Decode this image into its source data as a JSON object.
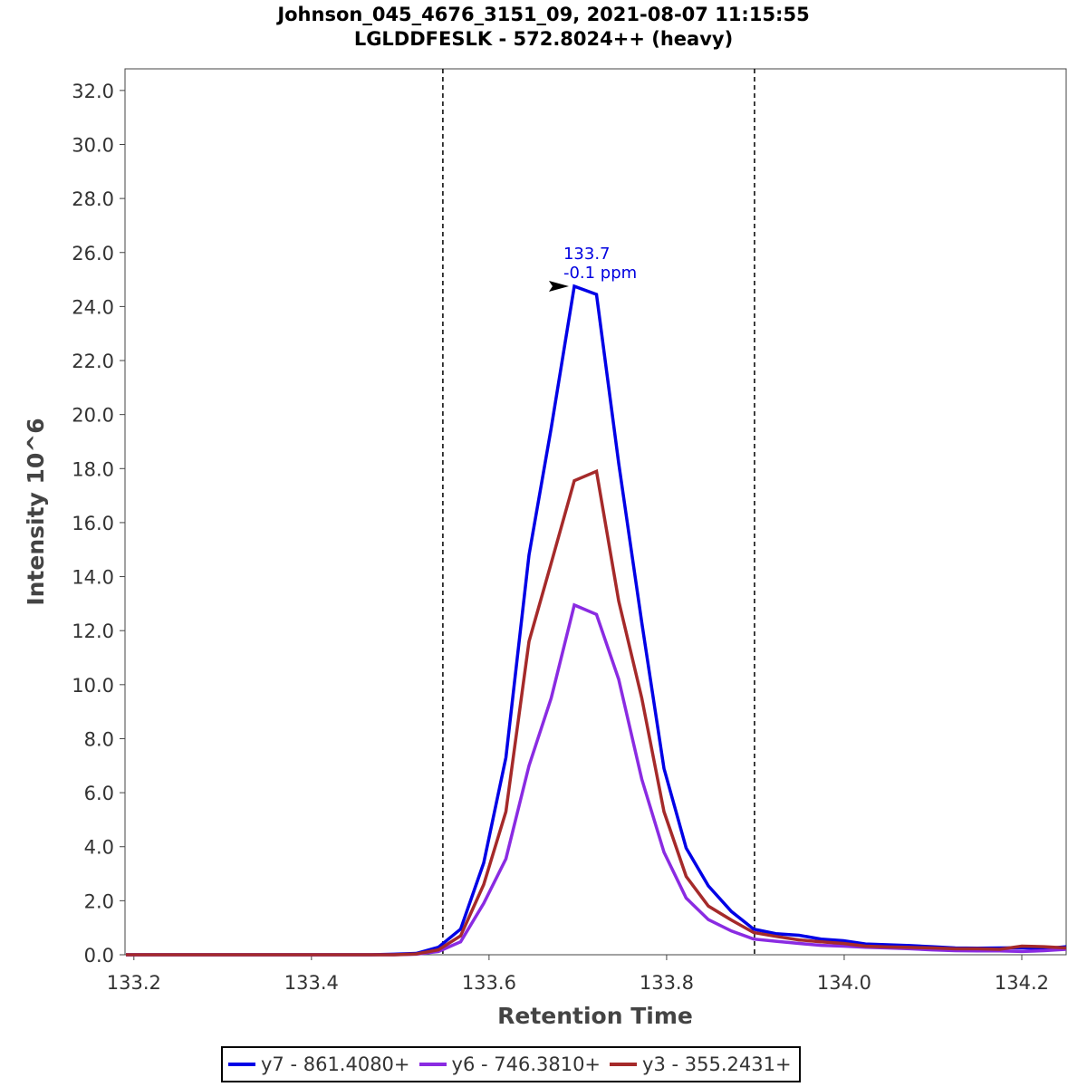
{
  "chart_data": {
    "type": "line",
    "title": "Johnson_045_4676_3151_09, 2021-08-07 11:15:55",
    "subtitle": "LGLDDFESLK - 572.8024++ (heavy)",
    "xlabel": "Retention Time",
    "ylabel": "Intensity 10^6",
    "xlim": [
      133.19,
      134.25
    ],
    "ylim": [
      0,
      32.8
    ],
    "xticks": [
      133.2,
      133.4,
      133.6,
      133.8,
      134.0,
      134.2
    ],
    "xtick_labels": [
      "133.2",
      "133.4",
      "133.6",
      "133.8",
      "134.0",
      "134.2"
    ],
    "yticks": [
      0,
      2,
      4,
      6,
      8,
      10,
      12,
      14,
      16,
      18,
      20,
      22,
      24,
      26,
      28,
      30,
      32
    ],
    "ytick_labels": [
      "0.0",
      "2.0",
      "4.0",
      "6.0",
      "8.0",
      "10.0",
      "12.0",
      "14.0",
      "16.0",
      "18.0",
      "20.0",
      "22.0",
      "24.0",
      "26.0",
      "28.0",
      "30.0",
      "32.0"
    ],
    "integration_bounds": [
      133.548,
      133.899
    ],
    "x": [
      133.191,
      133.216,
      133.242,
      133.267,
      133.292,
      133.317,
      133.342,
      133.367,
      133.392,
      133.417,
      133.442,
      133.467,
      133.493,
      133.518,
      133.543,
      133.568,
      133.594,
      133.619,
      133.645,
      133.67,
      133.696,
      133.721,
      133.746,
      133.772,
      133.797,
      133.822,
      133.847,
      133.873,
      133.898,
      133.923,
      133.949,
      133.974,
      133.999,
      134.024,
      134.049,
      134.074,
      134.099,
      134.125,
      134.15,
      134.175,
      134.2,
      134.225,
      134.25
    ],
    "series": [
      {
        "name": "y7 - 861.4080+",
        "color": "#0000e6",
        "values": [
          0,
          0,
          0,
          0,
          0,
          0,
          0,
          0,
          0,
          0,
          0,
          0,
          0.02,
          0.05,
          0.28,
          0.95,
          3.4,
          7.3,
          14.8,
          19.5,
          24.75,
          24.45,
          18.2,
          12.3,
          6.9,
          3.95,
          2.55,
          1.6,
          0.95,
          0.78,
          0.72,
          0.58,
          0.52,
          0.4,
          0.37,
          0.34,
          0.3,
          0.25,
          0.24,
          0.25,
          0.26,
          0.22,
          0.3
        ]
      },
      {
        "name": "y6 - 746.3810+",
        "color": "#8a2be2",
        "values": [
          0,
          0,
          0,
          0,
          0,
          0,
          0,
          0,
          0,
          0,
          0,
          0,
          0,
          0.02,
          0.12,
          0.48,
          1.9,
          3.55,
          7.0,
          9.5,
          12.95,
          12.6,
          10.2,
          6.5,
          3.8,
          2.1,
          1.3,
          0.88,
          0.58,
          0.5,
          0.42,
          0.35,
          0.32,
          0.28,
          0.25,
          0.22,
          0.18,
          0.15,
          0.14,
          0.14,
          0.12,
          0.15,
          0.2
        ]
      },
      {
        "name": "y3 - 355.2431+",
        "color": "#a52a2a",
        "values": [
          0,
          0,
          0,
          0,
          0,
          0,
          0,
          0,
          0,
          0,
          0,
          0,
          0,
          0.03,
          0.18,
          0.7,
          2.6,
          5.3,
          11.6,
          14.5,
          17.55,
          17.9,
          13.1,
          9.5,
          5.3,
          2.9,
          1.8,
          1.28,
          0.82,
          0.68,
          0.55,
          0.48,
          0.42,
          0.32,
          0.29,
          0.27,
          0.25,
          0.22,
          0.22,
          0.2,
          0.32,
          0.3,
          0.25
        ]
      }
    ],
    "annotation": {
      "x": 133.696,
      "y": 24.75,
      "line1": "133.7",
      "line2": "-0.1 ppm",
      "color": "#0000e0"
    },
    "legend_position": "bottom-center"
  }
}
